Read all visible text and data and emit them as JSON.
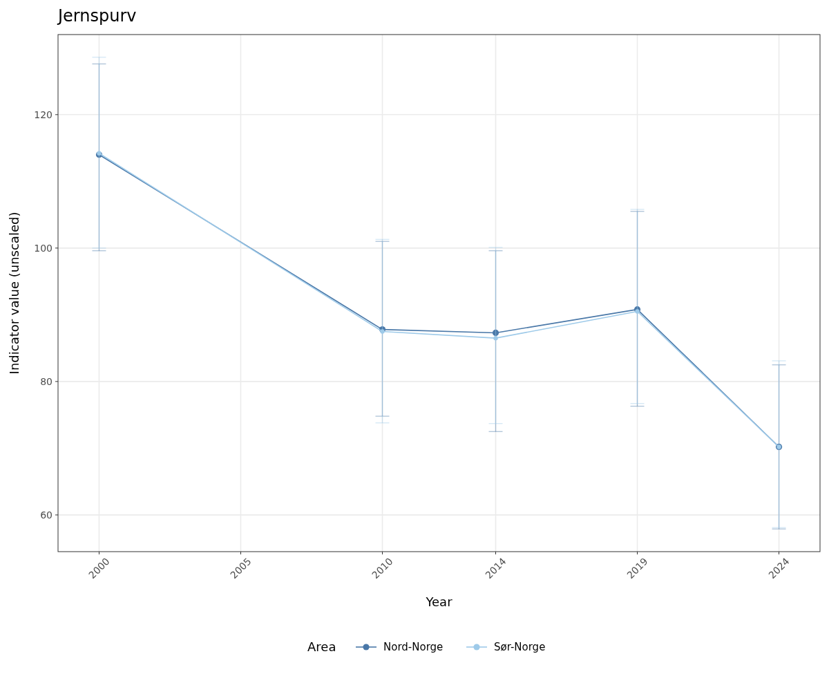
{
  "chart_data": {
    "type": "line",
    "title": "Jernspurv",
    "xlabel": "Year",
    "ylabel": "Indicator value (unscaled)",
    "legend_title": "Area",
    "x": [
      2000,
      2010,
      2014,
      2019,
      2024
    ],
    "xlim": [
      1998.55,
      2025.45
    ],
    "xticks": [
      2000,
      2005,
      2010,
      2014,
      2019,
      2024
    ],
    "ylim": [
      54.5,
      132
    ],
    "yticks": [
      60,
      80,
      100,
      120
    ],
    "grid": true,
    "legend": "bottom",
    "marker": "circle",
    "line_style": "solid",
    "series": [
      {
        "name": "Nord-Norge",
        "color": "#4a78a8",
        "values": [
          114.0,
          87.8,
          87.3,
          90.8,
          70.2
        ],
        "errors": [
          [
            99.6,
            127.6
          ],
          [
            74.8,
            101.0
          ],
          [
            72.5,
            99.6
          ],
          [
            76.3,
            105.5
          ],
          [
            57.9,
            82.5
          ]
        ]
      },
      {
        "name": "Sør-Norge",
        "color": "#9ecae9",
        "values": [
          114.2,
          87.5,
          86.5,
          90.5,
          70.2
        ],
        "errors": [
          [
            100.0,
            128.6
          ],
          [
            73.8,
            101.3
          ],
          [
            73.7,
            100.1
          ],
          [
            76.7,
            105.8
          ],
          [
            58.1,
            83.1
          ]
        ]
      }
    ]
  }
}
